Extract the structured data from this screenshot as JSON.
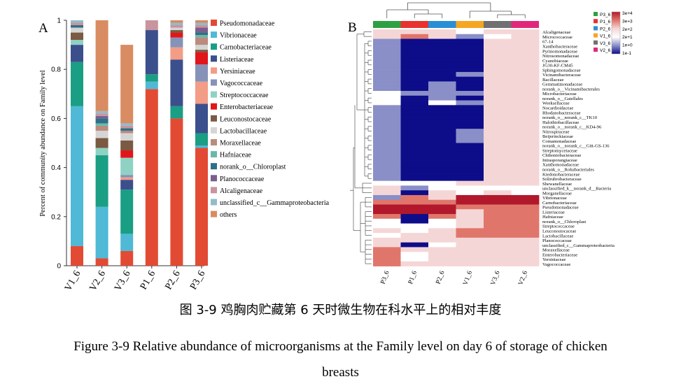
{
  "caption_cn": "图 3-9  鸡胸肉贮藏第 6 天时微生物在科水平上的相对丰度",
  "caption_en_line1": "Figure 3-9 Relative abundance of microorganisms at the Family level on day 6 of storage of chicken",
  "caption_en_line2": "breasts",
  "chart_data": [
    {
      "panel": "A",
      "type": "bar",
      "stacked": true,
      "ylabel": "Percent of community abundance on Family level",
      "ylim": [
        0,
        1
      ],
      "yticks": [
        0,
        0.2,
        0.4,
        0.6,
        0.8,
        1
      ],
      "categories": [
        "V1_6",
        "V2_6",
        "V3_6",
        "P1_6",
        "P2_6",
        "P3_6"
      ],
      "legend_position": "right",
      "series": [
        {
          "name": "Pseudomonadaceae",
          "color": "#e34a33",
          "values": [
            0.08,
            0.03,
            0.06,
            0.72,
            0.6,
            0.48
          ]
        },
        {
          "name": "Vibrionaceae",
          "color": "#4fb9d6",
          "values": [
            0.57,
            0.21,
            0.07,
            0.03,
            0.0,
            0.01
          ]
        },
        {
          "name": "Carnobacteriaceae",
          "color": "#1a9e84",
          "values": [
            0.18,
            0.21,
            0.18,
            0.03,
            0.05,
            0.05
          ]
        },
        {
          "name": "Listeriaceae",
          "color": "#3b4f8c",
          "values": [
            0.07,
            0.0,
            0.04,
            0.18,
            0.19,
            0.12
          ]
        },
        {
          "name": "Yersiniaceae",
          "color": "#f39c86",
          "values": [
            0.0,
            0.0,
            0.01,
            0.0,
            0.05,
            0.09
          ]
        },
        {
          "name": "Vagococcaceae",
          "color": "#8593b8",
          "values": [
            0.0,
            0.0,
            0.01,
            0.0,
            0.04,
            0.07
          ]
        },
        {
          "name": "Streptococcaceae",
          "color": "#8fd2c4",
          "values": [
            0.02,
            0.03,
            0.07,
            0.0,
            0.0,
            0.0
          ]
        },
        {
          "name": "Enterobacteriaceae",
          "color": "#e0161b",
          "values": [
            0.0,
            0.0,
            0.03,
            0.0,
            0.02,
            0.05
          ]
        },
        {
          "name": "Leuconostocaceae",
          "color": "#7a5a42",
          "values": [
            0.03,
            0.04,
            0.04,
            0.0,
            0.01,
            0.01
          ]
        },
        {
          "name": "Lactobacillaceae",
          "color": "#d5d5d5",
          "values": [
            0.02,
            0.03,
            0.03,
            0.0,
            0.01,
            0.02
          ]
        },
        {
          "name": "Moraxellaceae",
          "color": "#bb8b7e",
          "values": [
            0.0,
            0.02,
            0.01,
            0.0,
            0.0,
            0.03
          ]
        },
        {
          "name": "Hafniaceae",
          "color": "#69b9ab",
          "values": [
            0.0,
            0.01,
            0.0,
            0.0,
            0.0,
            0.01
          ]
        },
        {
          "name": "norank_o__Chloroplast",
          "color": "#2f6f87",
          "values": [
            0.01,
            0.02,
            0.01,
            0.0,
            0.0,
            0.01
          ]
        },
        {
          "name": "Planococcaceae",
          "color": "#7b5f8f",
          "values": [
            0.0,
            0.01,
            0.0,
            0.0,
            0.0,
            0.02
          ]
        },
        {
          "name": "Alcaligenaceae",
          "color": "#c8949e",
          "values": [
            0.01,
            0.01,
            0.01,
            0.04,
            0.01,
            0.01
          ]
        },
        {
          "name": "unclassified_c__Gammaproteobacteria",
          "color": "#92bcc9",
          "values": [
            0.01,
            0.01,
            0.01,
            0.0,
            0.01,
            0.01
          ]
        },
        {
          "name": "others",
          "color": "#d98b62",
          "values": [
            0.0,
            0.37,
            0.32,
            0.0,
            0.01,
            0.01
          ]
        }
      ]
    },
    {
      "panel": "B",
      "type": "heatmap",
      "columns": [
        "P3_6",
        "P1_6",
        "P2_6",
        "V1_6",
        "V3_6",
        "V2_6"
      ],
      "column_colors": [
        "#2ea043",
        "#e8322e",
        "#2b8fd6",
        "#f5a623",
        "#707070",
        "#e0287a"
      ],
      "legend_groups": [
        {
          "label": "P3_6",
          "color": "#2ea043"
        },
        {
          "label": "P1_6",
          "color": "#e8322e"
        },
        {
          "label": "P2_6",
          "color": "#2b8fd6"
        },
        {
          "label": "V1_6",
          "color": "#f5a623"
        },
        {
          "label": "V3_6",
          "color": "#707070"
        },
        {
          "label": "V2_6",
          "color": "#e0287a"
        }
      ],
      "color_scale": {
        "labels": [
          "3e+4",
          "3e+3",
          "2e+2",
          "2e+1",
          "1e+0",
          "1e-1"
        ],
        "colors": [
          "#b2182b",
          "#e0766b",
          "#f5d6d6",
          "#ffffff",
          "#8a8fc8",
          "#0d0d8a"
        ]
      },
      "rows": [
        "Alcaligenaceae",
        "Micrococcaceae",
        "67-14",
        "Xanthobacteraceae",
        "Pyrinomonadaceae",
        "Nitrosomonadaceae",
        "Cyanobiaceae",
        "JG30-KF-CM45",
        "Sphingomonadaceae",
        "Vicinamibacteraceae",
        "Bacillaceae",
        "Gemmatimonadaceae",
        "norank_o__Vicinamibacterales",
        "Microbacteriaceae",
        "norank_o__Gaiellales",
        "Weeksellaceae",
        "Nocardioidaceae",
        "Rhodanobacteraceae",
        "norank_o__norank_c__TK10",
        "Halothiobacillaceae",
        "norank_o__norank_c__KD4-96",
        "Nitrospiraceae",
        "Beijerinckiaceae",
        "Comamonadaceae",
        "norank_o__norank_c__Gitt-GS-136",
        "Streptomycetaceae",
        "Chthoniobacteraceae",
        "Intrasporangiaceae",
        "Xanthomonadaceae",
        "norank_o__Rokubacteriales",
        "Ktedonobacteraceae",
        "Solirubrobacteraceae",
        "Shewanellaceae",
        "unclassified_k__norank_d__Bacteria",
        "Morganellaceae",
        "Vibrionaceae",
        "Carnobacteriaceae",
        "Pseudomonadaceae",
        "Listeriaceae",
        "Hafniaceae",
        "norank_o__Chloroplast",
        "Streptococcaceae",
        "Leuconostocaceae",
        "Lactobacillaceae",
        "Planococcaceae",
        "unclassified_c__Gammaproteobacteria",
        "Moraxellaceae",
        "Enterobacteriaceae",
        "Yersiniaceae",
        "Vagococcaceae"
      ],
      "levels": [
        [
          2,
          2,
          2,
          3,
          2,
          2
        ],
        [
          2,
          1,
          2,
          4,
          3,
          2
        ],
        [
          4,
          5,
          5,
          5,
          2,
          2
        ],
        [
          4,
          5,
          5,
          5,
          2,
          2
        ],
        [
          4,
          5,
          5,
          5,
          2,
          2
        ],
        [
          4,
          5,
          5,
          5,
          2,
          2
        ],
        [
          4,
          5,
          5,
          5,
          2,
          2
        ],
        [
          4,
          5,
          5,
          5,
          2,
          2
        ],
        [
          4,
          5,
          5,
          5,
          2,
          2
        ],
        [
          4,
          5,
          5,
          4,
          2,
          2
        ],
        [
          4,
          5,
          5,
          5,
          2,
          2
        ],
        [
          4,
          5,
          4,
          5,
          2,
          2
        ],
        [
          4,
          5,
          4,
          5,
          2,
          2
        ],
        [
          3,
          4,
          4,
          4,
          2,
          2
        ],
        [
          3,
          5,
          4,
          5,
          2,
          2
        ],
        [
          3,
          5,
          3,
          4,
          2,
          2
        ],
        [
          4,
          5,
          5,
          5,
          2,
          2
        ],
        [
          4,
          5,
          5,
          5,
          2,
          2
        ],
        [
          4,
          5,
          5,
          5,
          2,
          2
        ],
        [
          4,
          5,
          5,
          5,
          2,
          2
        ],
        [
          4,
          5,
          5,
          5,
          2,
          2
        ],
        [
          4,
          5,
          5,
          4,
          2,
          2
        ],
        [
          4,
          5,
          5,
          4,
          2,
          2
        ],
        [
          4,
          5,
          5,
          4,
          2,
          2
        ],
        [
          4,
          5,
          5,
          5,
          2,
          2
        ],
        [
          4,
          5,
          5,
          5,
          2,
          2
        ],
        [
          4,
          5,
          5,
          5,
          2,
          2
        ],
        [
          4,
          5,
          5,
          5,
          2,
          2
        ],
        [
          4,
          5,
          5,
          5,
          2,
          2
        ],
        [
          4,
          5,
          5,
          5,
          2,
          2
        ],
        [
          4,
          5,
          5,
          5,
          2,
          2
        ],
        [
          4,
          5,
          5,
          5,
          2,
          2
        ],
        [
          3,
          3,
          3,
          2,
          2,
          2
        ],
        [
          2,
          4,
          3,
          3,
          3,
          3
        ],
        [
          2,
          5,
          2,
          3,
          2,
          3
        ],
        [
          4,
          1,
          2,
          0,
          0,
          0
        ],
        [
          1,
          1,
          1,
          0,
          0,
          0
        ],
        [
          0,
          0,
          0,
          1,
          1,
          1
        ],
        [
          0,
          0,
          0,
          2,
          1,
          1
        ],
        [
          1,
          5,
          1,
          2,
          1,
          1
        ],
        [
          3,
          5,
          3,
          2,
          1,
          1
        ],
        [
          3,
          3,
          3,
          2,
          1,
          1
        ],
        [
          2,
          3,
          2,
          1,
          1,
          1
        ],
        [
          3,
          2,
          2,
          1,
          1,
          1
        ],
        [
          2,
          2,
          2,
          2,
          2,
          2
        ],
        [
          2,
          5,
          3,
          2,
          2,
          2
        ],
        [
          1,
          2,
          2,
          2,
          2,
          2
        ],
        [
          1,
          3,
          2,
          2,
          2,
          2
        ],
        [
          1,
          3,
          2,
          2,
          2,
          2
        ],
        [
          1,
          2,
          2,
          2,
          2,
          2
        ]
      ]
    }
  ]
}
